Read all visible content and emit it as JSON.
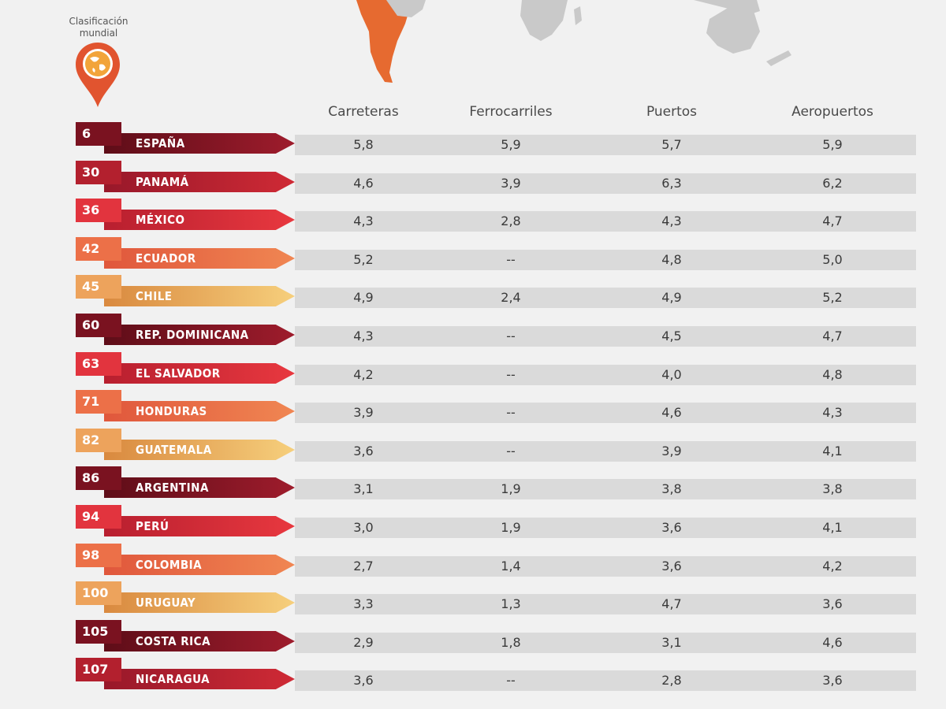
{
  "legend": {
    "line1": "Clasificación",
    "line2": "mundial"
  },
  "chart_data": {
    "type": "table",
    "columns": [
      "Carreteras",
      "Ferrocarriles",
      "Puertos",
      "Aeropuertos"
    ],
    "rows": [
      {
        "rank": "6",
        "country": "ESPAÑA",
        "values": [
          "5,8",
          "5,9",
          "5,7",
          "5,9"
        ]
      },
      {
        "rank": "30",
        "country": "PANAMÁ",
        "values": [
          "4,6",
          "3,9",
          "6,3",
          "6,2"
        ]
      },
      {
        "rank": "36",
        "country": "MÉXICO",
        "values": [
          "4,3",
          "2,8",
          "4,3",
          "4,7"
        ]
      },
      {
        "rank": "42",
        "country": "ECUADOR",
        "values": [
          "5,2",
          "--",
          "4,8",
          "5,0"
        ]
      },
      {
        "rank": "45",
        "country": "CHILE",
        "values": [
          "4,9",
          "2,4",
          "4,9",
          "5,2"
        ]
      },
      {
        "rank": "60",
        "country": "REP. DOMINICANA",
        "values": [
          "4,3",
          "--",
          "4,5",
          "4,7"
        ]
      },
      {
        "rank": "63",
        "country": "EL SALVADOR",
        "values": [
          "4,2",
          "--",
          "4,0",
          "4,8"
        ]
      },
      {
        "rank": "71",
        "country": "HONDURAS",
        "values": [
          "3,9",
          "--",
          "4,6",
          "4,3"
        ]
      },
      {
        "rank": "82",
        "country": "GUATEMALA",
        "values": [
          "3,6",
          "--",
          "3,9",
          "4,1"
        ]
      },
      {
        "rank": "86",
        "country": "ARGENTINA",
        "values": [
          "3,1",
          "1,9",
          "3,8",
          "3,8"
        ]
      },
      {
        "rank": "94",
        "country": "PERÚ",
        "values": [
          "3,0",
          "1,9",
          "3,6",
          "4,1"
        ]
      },
      {
        "rank": "98",
        "country": "COLOMBIA",
        "values": [
          "2,7",
          "1,4",
          "3,6",
          "4,2"
        ]
      },
      {
        "rank": "100",
        "country": "URUGUAY",
        "values": [
          "3,3",
          "1,3",
          "4,7",
          "3,6"
        ]
      },
      {
        "rank": "105",
        "country": "COSTA RICA",
        "values": [
          "2,9",
          "1,8",
          "3,1",
          "4,6"
        ]
      },
      {
        "rank": "107",
        "country": "NICARAGUA",
        "values": [
          "3,6",
          "--",
          "2,8",
          "3,6"
        ]
      }
    ]
  },
  "colors": {
    "palette": [
      {
        "box": "#7a1220",
        "from": "#5e0d18",
        "to": "#9e1c2c"
      },
      {
        "box": "#b3202e",
        "from": "#98182a",
        "to": "#cf2a35"
      },
      {
        "box": "#e2343e",
        "from": "#b81f2f",
        "to": "#e8383f"
      },
      {
        "box": "#ec7048",
        "from": "#e0573c",
        "to": "#f08652"
      },
      {
        "box": "#eda35c",
        "from": "#d9893f",
        "to": "#f6cf7c"
      }
    ],
    "row_color_index": [
      0,
      1,
      2,
      3,
      4,
      0,
      2,
      3,
      4,
      0,
      2,
      3,
      4,
      0,
      1
    ],
    "pin": "#e1542f",
    "map_land": "#c9c9c9",
    "map_highlight": "#e66a30"
  }
}
